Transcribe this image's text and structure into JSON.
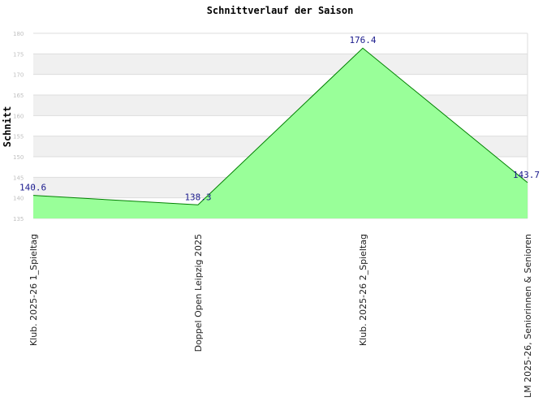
{
  "chart_data": {
    "type": "area",
    "title": "Schnittverlauf der Saison",
    "ylabel": "Schnitt",
    "xlabel": "",
    "categories": [
      "Klub. 2025-26 1_Spieltag",
      "Doppel Open Leipzig 2025",
      "Klub. 2025-26 2_Spieltag",
      "LM 2025-26, Seniorinnen & Senioren"
    ],
    "values": [
      140.6,
      138.3,
      176.4,
      143.7
    ],
    "data_labels": [
      "140.6",
      "138.3",
      "176.4",
      "143.7"
    ],
    "ylim": [
      135,
      180
    ],
    "yticks": [
      "135",
      "140",
      "145",
      "150",
      "155",
      "160",
      "165",
      "170",
      "175",
      "180"
    ],
    "grid": true,
    "colors": {
      "fill": "#99ff99",
      "line": "#008000",
      "band": "#f0f0f0",
      "label": "#1a1a8c"
    }
  }
}
